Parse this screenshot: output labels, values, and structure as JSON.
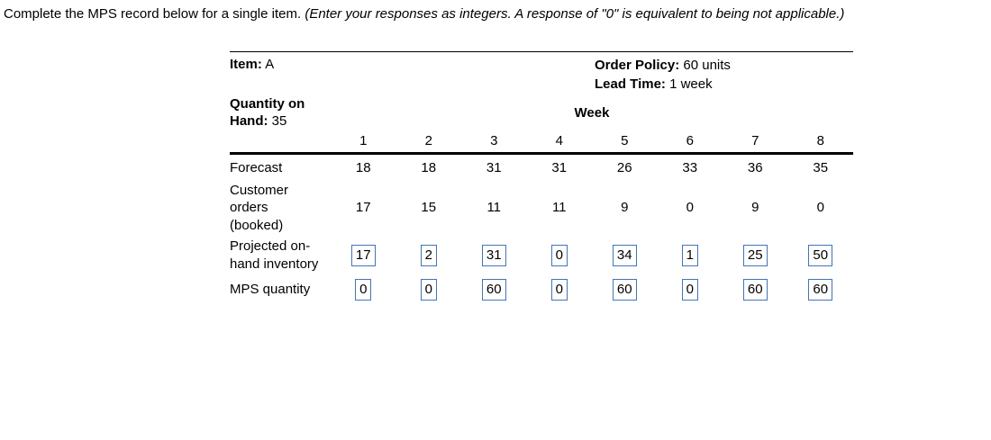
{
  "instruction": {
    "main": "Complete the MPS record below for a single item.",
    "note": "(Enter your responses as integers. A response of \"0\" is equivalent to being not applicable.)"
  },
  "record": {
    "item": {
      "label": "Item:",
      "value": "A"
    },
    "order_policy": {
      "label": "Order Policy:",
      "value": "60 units"
    },
    "lead_time": {
      "label": "Lead Time:",
      "value": "1 week"
    },
    "quantity_on_hand": {
      "label": "Quantity on Hand:",
      "value": "35"
    },
    "week_header": "Week",
    "week_numbers": [
      "1",
      "2",
      "3",
      "4",
      "5",
      "6",
      "7",
      "8"
    ],
    "rows": {
      "forecast": {
        "label": "Forecast",
        "values": [
          "18",
          "18",
          "31",
          "31",
          "26",
          "33",
          "36",
          "35"
        ]
      },
      "customer_orders": {
        "label": "Customer orders (booked)",
        "values": [
          "17",
          "15",
          "11",
          "11",
          "9",
          "0",
          "9",
          "0"
        ]
      },
      "projected_on_hand": {
        "label": "Projected on-hand inventory",
        "values": [
          "17",
          "2",
          "31",
          "0",
          "34",
          "1",
          "25",
          "50"
        ]
      },
      "mps_quantity": {
        "label": "MPS quantity",
        "values": [
          "0",
          "0",
          "60",
          "0",
          "60",
          "0",
          "60",
          "60"
        ]
      }
    }
  },
  "colors": {
    "input_border": "#4374b7",
    "text": "#000000",
    "background": "#ffffff"
  }
}
